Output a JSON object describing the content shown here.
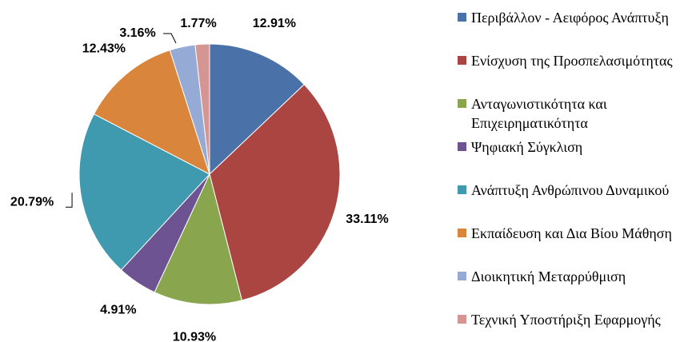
{
  "chart_data": {
    "type": "pie",
    "categories": [
      "Περιβάλλον - Αειφόρος Ανάπτυξη",
      "Ενίσχυση της Προσπελασιμότητας",
      "Ανταγωνιστικότητα και Επιχειρηματικότητα",
      "Ψηφιακή Σύγκλιση",
      "Ανάπτυξη Ανθρώπινου Δυναμικού",
      "Εκπαίδευση και Δια Βίου Μάθηση",
      "Διοικητική Μεταρρύθμιση",
      "Τεχνική Υποστήριξη Εφαρμογής"
    ],
    "values": [
      12.91,
      33.11,
      10.93,
      4.91,
      20.79,
      12.43,
      3.16,
      1.77
    ],
    "value_labels": [
      "12.91%",
      "33.11%",
      "10.93%",
      "4.91%",
      "20.79%",
      "12.43%",
      "3.16%",
      "1.77%"
    ],
    "colors": [
      "#4a72a8",
      "#aa4542",
      "#89a54e",
      "#6d5392",
      "#3f99af",
      "#d9853b",
      "#95abd5",
      "#d59593"
    ],
    "legend": "right"
  }
}
